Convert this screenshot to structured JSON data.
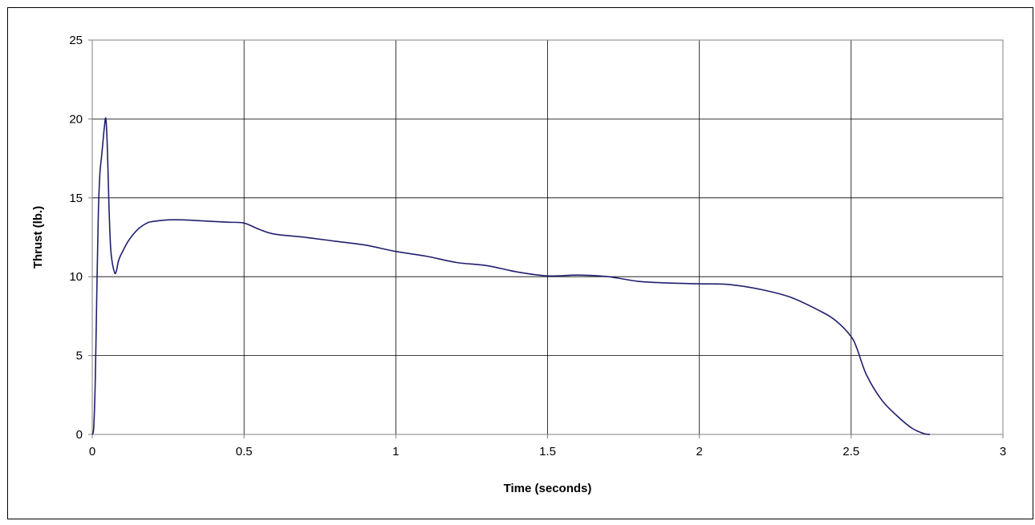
{
  "chart_data": {
    "type": "line",
    "title": "",
    "xlabel": "Time (seconds)",
    "ylabel": "Thrust (lb.)",
    "xlim": [
      0,
      3
    ],
    "ylim": [
      0,
      25
    ],
    "xticks": [
      "0",
      "0.5",
      "1",
      "1.5",
      "2",
      "2.5",
      "3"
    ],
    "yticks": [
      "0",
      "5",
      "10",
      "15",
      "20",
      "25"
    ],
    "grid": true,
    "legend": "none",
    "line_color": "#1f1f6e",
    "series": [
      {
        "x": [
          0,
          0.005,
          0.01,
          0.015,
          0.02,
          0.025,
          0.03,
          0.035,
          0.04,
          0.045,
          0.05,
          0.055,
          0.06,
          0.065,
          0.07,
          0.075,
          0.08,
          0.085,
          0.09,
          0.1,
          0.12,
          0.15,
          0.18,
          0.2,
          0.25,
          0.3,
          0.35,
          0.4,
          0.45,
          0.5,
          0.55,
          0.6,
          0.7,
          0.8,
          0.9,
          1.0,
          1.1,
          1.2,
          1.3,
          1.4,
          1.5,
          1.6,
          1.7,
          1.8,
          1.9,
          2.0,
          2.1,
          2.2,
          2.3,
          2.4,
          2.45,
          2.5,
          2.52,
          2.55,
          2.6,
          2.65,
          2.7,
          2.74,
          2.76
        ],
        "y": [
          0,
          0.5,
          3.5,
          9,
          14,
          16.5,
          17.5,
          18.5,
          19.5,
          20,
          18,
          14.5,
          12,
          11,
          10.5,
          10.2,
          10.4,
          10.9,
          11.2,
          11.6,
          12.3,
          13.0,
          13.4,
          13.5,
          13.6,
          13.6,
          13.55,
          13.5,
          13.45,
          13.4,
          13.0,
          12.7,
          12.5,
          12.25,
          12.0,
          11.6,
          11.3,
          10.9,
          10.7,
          10.3,
          10.05,
          10.1,
          10.0,
          9.7,
          9.6,
          9.55,
          9.5,
          9.2,
          8.7,
          7.8,
          7.2,
          6.2,
          5.4,
          3.8,
          2.2,
          1.2,
          0.4,
          0.05,
          0
        ]
      }
    ]
  }
}
